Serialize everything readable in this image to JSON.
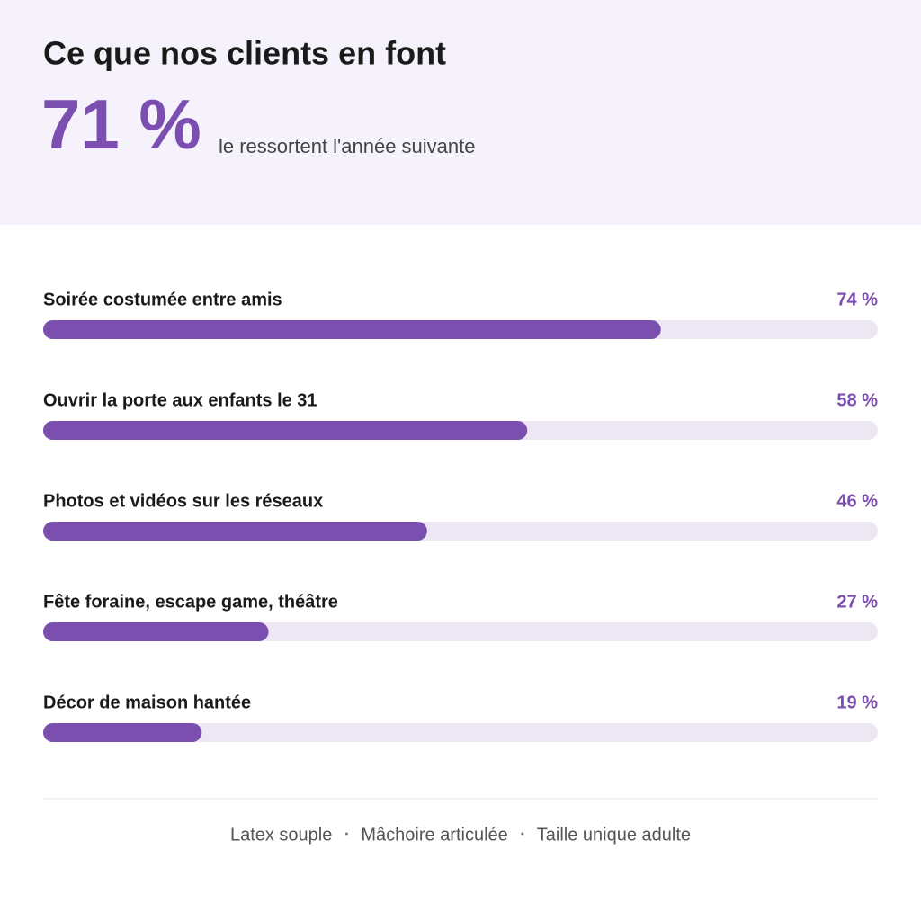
{
  "header": {
    "title": "Ce que nos clients en font",
    "stat": "71 %",
    "stat_caption": "le ressortent l'année suivante"
  },
  "chart_data": {
    "type": "bar",
    "orientation": "horizontal",
    "categories": [
      "Soirée costumée entre amis",
      "Ouvrir la porte aux enfants le 31",
      "Photos et vidéos sur les réseaux",
      "Fête foraine, escape game, théâtre",
      "Décor de maison hantée"
    ],
    "values": [
      74,
      58,
      46,
      27,
      19
    ],
    "value_labels": [
      "74 %",
      "58 %",
      "46 %",
      "27 %",
      "19 %"
    ],
    "xlim": [
      0,
      100
    ],
    "color": "#7b4fb0",
    "track_color": "#ede7f3"
  },
  "footer": {
    "items": [
      "Latex souple",
      "Mâchoire articulée",
      "Taille unique adulte"
    ]
  }
}
